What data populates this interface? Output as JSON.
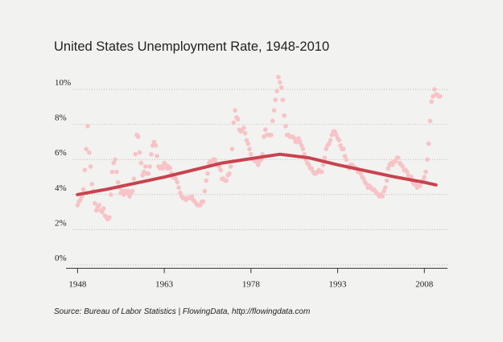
{
  "chart_data": {
    "type": "scatter",
    "title": "United States Unemployment Rate, 1948-2010",
    "source": "Source: Bureau of Labor Statistics | FlowingData, http://flowingdata.com",
    "xlim": [
      1946,
      2012
    ],
    "xticks": [
      1948,
      1963,
      1978,
      1993,
      2008
    ],
    "ylim": [
      -0.2,
      11.4
    ],
    "yticks": [
      {
        "value": 0,
        "label": "0%"
      },
      {
        "value": 2,
        "label": "2%"
      },
      {
        "value": 4,
        "label": "4%"
      },
      {
        "value": 6,
        "label": "6%"
      },
      {
        "value": 8,
        "label": "8%"
      },
      {
        "value": 10,
        "label": "10%"
      }
    ],
    "grid": true,
    "series": [
      {
        "type": "scatter",
        "color": "#f7c3c6",
        "x": [
          1948,
          1948.25,
          1948.5,
          1948.75,
          1949,
          1949.25,
          1949.5,
          1949.75,
          1950,
          1950.25,
          1950.5,
          1950.75,
          1951,
          1951.25,
          1951.5,
          1951.75,
          1952,
          1952.25,
          1952.5,
          1952.75,
          1953,
          1953.25,
          1953.5,
          1953.75,
          1954,
          1954.25,
          1954.5,
          1954.75,
          1955,
          1955.25,
          1955.5,
          1955.75,
          1956,
          1956.25,
          1956.5,
          1956.75,
          1957,
          1957.25,
          1957.5,
          1957.75,
          1958,
          1958.25,
          1958.5,
          1958.75,
          1959,
          1959.25,
          1959.5,
          1959.75,
          1960,
          1960.25,
          1960.5,
          1960.75,
          1961,
          1961.25,
          1961.5,
          1961.75,
          1962,
          1962.25,
          1962.5,
          1962.75,
          1963,
          1963.25,
          1963.5,
          1963.75,
          1964,
          1964.25,
          1964.5,
          1964.75,
          1965,
          1965.25,
          1965.5,
          1965.75,
          1966,
          1966.25,
          1966.5,
          1966.75,
          1967,
          1967.25,
          1967.5,
          1967.75,
          1968,
          1968.25,
          1968.5,
          1968.75,
          1969,
          1969.25,
          1969.5,
          1969.75,
          1970,
          1970.25,
          1970.5,
          1970.75,
          1971,
          1971.25,
          1971.5,
          1971.75,
          1972,
          1972.25,
          1972.5,
          1972.75,
          1973,
          1973.25,
          1973.5,
          1973.75,
          1974,
          1974.25,
          1974.5,
          1974.75,
          1975,
          1975.25,
          1975.5,
          1975.75,
          1976,
          1976.25,
          1976.5,
          1976.75,
          1977,
          1977.25,
          1977.5,
          1977.75,
          1978,
          1978.25,
          1978.5,
          1978.75,
          1979,
          1979.25,
          1979.5,
          1979.75,
          1980,
          1980.25,
          1980.5,
          1980.75,
          1981,
          1981.25,
          1981.5,
          1981.75,
          1982,
          1982.25,
          1982.5,
          1982.75,
          1983,
          1983.25,
          1983.5,
          1983.75,
          1984,
          1984.25,
          1984.5,
          1984.75,
          1985,
          1985.25,
          1985.5,
          1985.75,
          1986,
          1986.25,
          1986.5,
          1986.75,
          1987,
          1987.25,
          1987.5,
          1987.75,
          1988,
          1988.25,
          1988.5,
          1988.75,
          1989,
          1989.25,
          1989.5,
          1989.75,
          1990,
          1990.25,
          1990.5,
          1990.75,
          1991,
          1991.25,
          1991.5,
          1991.75,
          1992,
          1992.25,
          1992.5,
          1992.75,
          1993,
          1993.25,
          1993.5,
          1993.75,
          1994,
          1994.25,
          1994.5,
          1994.75,
          1995,
          1995.25,
          1995.5,
          1995.75,
          1996,
          1996.25,
          1996.5,
          1996.75,
          1997,
          1997.25,
          1997.5,
          1997.75,
          1998,
          1998.25,
          1998.5,
          1998.75,
          1999,
          1999.25,
          1999.5,
          1999.75,
          2000,
          2000.25,
          2000.5,
          2000.75,
          2001,
          2001.25,
          2001.5,
          2001.75,
          2002,
          2002.25,
          2002.5,
          2002.75,
          2003,
          2003.25,
          2003.5,
          2003.75,
          2004,
          2004.25,
          2004.5,
          2004.75,
          2005,
          2005.25,
          2005.5,
          2005.75,
          2006,
          2006.25,
          2006.5,
          2006.75,
          2007,
          2007.25,
          2007.5,
          2007.75,
          2008,
          2008.25,
          2008.5,
          2008.75,
          2009,
          2009.25,
          2009.5,
          2009.75,
          2010,
          2010.25,
          2010.5,
          2010.75
        ],
        "values": [
          3.4,
          3.6,
          3.7,
          3.9,
          4.3,
          5.4,
          6.6,
          7.9,
          6.4,
          5.6,
          4.6,
          4.2,
          3.5,
          3.1,
          3.3,
          3.4,
          3.1,
          3.0,
          3.2,
          2.8,
          2.7,
          2.6,
          2.7,
          4.0,
          5.3,
          5.8,
          6.0,
          5.3,
          4.7,
          4.4,
          4.1,
          4.2,
          4.0,
          4.2,
          4.1,
          4.2,
          3.9,
          4.1,
          4.2,
          4.9,
          6.3,
          7.4,
          7.3,
          6.4,
          5.8,
          5.1,
          5.3,
          5.6,
          5.2,
          5.2,
          5.6,
          6.3,
          6.8,
          7.0,
          6.8,
          6.2,
          5.6,
          5.5,
          5.6,
          5.5,
          5.8,
          5.7,
          5.5,
          5.6,
          5.5,
          5.2,
          5.0,
          5.0,
          4.9,
          4.7,
          4.4,
          4.1,
          3.9,
          3.8,
          3.8,
          3.7,
          3.8,
          3.8,
          3.8,
          3.9,
          3.7,
          3.6,
          3.5,
          3.4,
          3.4,
          3.4,
          3.6,
          3.6,
          4.2,
          4.8,
          5.2,
          5.8,
          5.9,
          5.9,
          6.0,
          6.0,
          5.8,
          5.7,
          5.6,
          5.4,
          4.9,
          4.9,
          4.8,
          4.8,
          5.1,
          5.2,
          5.6,
          6.6,
          8.1,
          8.8,
          8.4,
          8.3,
          7.7,
          7.6,
          7.7,
          7.8,
          7.5,
          7.1,
          6.9,
          6.6,
          6.3,
          6.0,
          6.0,
          5.9,
          5.9,
          5.7,
          5.9,
          6.0,
          6.3,
          7.3,
          7.7,
          7.4,
          7.4,
          7.4,
          7.4,
          8.2,
          8.8,
          9.4,
          9.9,
          10.7,
          10.4,
          10.1,
          9.4,
          8.5,
          7.9,
          7.4,
          7.4,
          7.3,
          7.3,
          7.3,
          7.2,
          7.0,
          7.0,
          7.2,
          7.0,
          6.8,
          6.6,
          6.3,
          6.0,
          5.8,
          5.7,
          5.5,
          5.5,
          5.3,
          5.2,
          5.2,
          5.3,
          5.4,
          5.3,
          5.3,
          5.7,
          6.1,
          6.6,
          6.8,
          6.9,
          7.1,
          7.4,
          7.6,
          7.6,
          7.4,
          7.2,
          7.1,
          6.8,
          6.6,
          6.6,
          6.2,
          6.0,
          5.6,
          5.5,
          5.7,
          5.7,
          5.6,
          5.5,
          5.5,
          5.3,
          5.3,
          5.2,
          5.0,
          4.9,
          4.7,
          4.6,
          4.4,
          4.5,
          4.4,
          4.3,
          4.3,
          4.2,
          4.1,
          4.0,
          3.9,
          4.0,
          3.9,
          4.2,
          4.4,
          4.8,
          5.5,
          5.7,
          5.8,
          5.7,
          5.9,
          5.9,
          6.1,
          6.1,
          5.8,
          5.7,
          5.6,
          5.4,
          5.4,
          5.3,
          5.1,
          5.0,
          5.0,
          4.7,
          4.6,
          4.6,
          4.4,
          4.5,
          4.5,
          4.7,
          4.8,
          5.0,
          5.3,
          6.0,
          6.9,
          8.2,
          9.3,
          9.6,
          10.0,
          9.7,
          9.7,
          9.6,
          9.6
        ]
      },
      {
        "type": "line",
        "color": "#c8434f",
        "x": [
          1948,
          1953,
          1958,
          1963,
          1968,
          1973,
          1978,
          1983,
          1988,
          1993,
          1998,
          2003,
          2008,
          2010
        ],
        "values": [
          4.0,
          4.3,
          4.65,
          5.0,
          5.4,
          5.8,
          6.05,
          6.3,
          6.1,
          5.7,
          5.35,
          5.0,
          4.7,
          4.55
        ]
      }
    ]
  }
}
